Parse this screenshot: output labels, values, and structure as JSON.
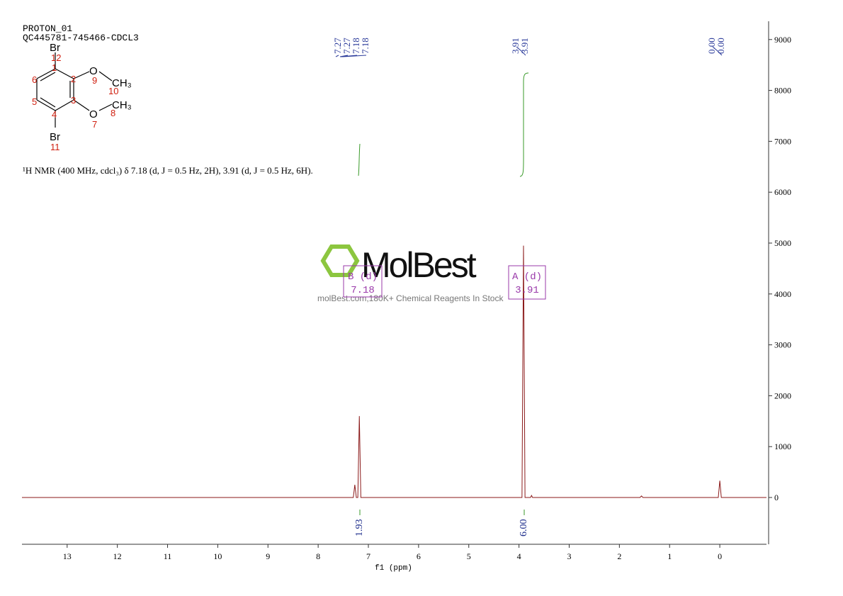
{
  "chart_data": {
    "type": "line",
    "header": [
      "PROTON_01",
      "QC445781-745466-CDCL3"
    ],
    "x_label": "f1 (ppm)",
    "xlim": [
      13.9,
      -0.93
    ],
    "xticks": [
      13,
      12,
      11,
      10,
      9,
      8,
      7,
      6,
      5,
      4,
      3,
      2,
      1,
      0
    ],
    "ylim": [
      -919,
      9359
    ],
    "yticks": [
      0,
      1000,
      2000,
      3000,
      4000,
      5000,
      6000,
      7000,
      8000,
      9000
    ],
    "x": [
      13.9,
      7.3,
      7.27,
      7.24,
      7.21,
      7.18,
      7.15,
      3.94,
      3.91,
      3.88,
      3.77,
      3.75,
      3.73,
      1.59,
      1.56,
      1.53,
      0.03,
      0.0,
      -0.03,
      -0.93
    ],
    "series": [
      {
        "color": "#8b1a1a",
        "values": [
          0,
          0,
          250,
          0,
          0,
          1600,
          0,
          0,
          4950,
          0,
          0,
          40,
          0,
          0,
          30,
          0,
          0,
          330,
          0,
          0
        ]
      }
    ],
    "peak_labels": [
      "7.27",
      "7.27",
      "7.18",
      "7.18",
      "3.91",
      "3.91",
      "0.00",
      "0.00"
    ],
    "integrals": [
      "1.93",
      "6.00"
    ],
    "multiplets": [
      [
        "B (d)",
        "7.18"
      ],
      [
        "A (d)",
        "3.91"
      ]
    ],
    "description": "¹H NMR (400 MHz, cdcl₃) δ 7.18 (d, J = 0.5 Hz, 2H), 3.91 (d, J = 0.5 Hz, 6H).",
    "structure": {
      "atoms": [
        "Br",
        "O",
        "CH₃",
        "O",
        "CH₃",
        "Br"
      ],
      "numbers": [
        "12",
        "1",
        "2",
        "3",
        "4",
        "5",
        "6",
        "9",
        "10",
        "7",
        "8",
        "11"
      ]
    },
    "watermark": [
      "MolBest",
      "molBest.com,180K+ Chemical Reagents In Stock"
    ]
  }
}
